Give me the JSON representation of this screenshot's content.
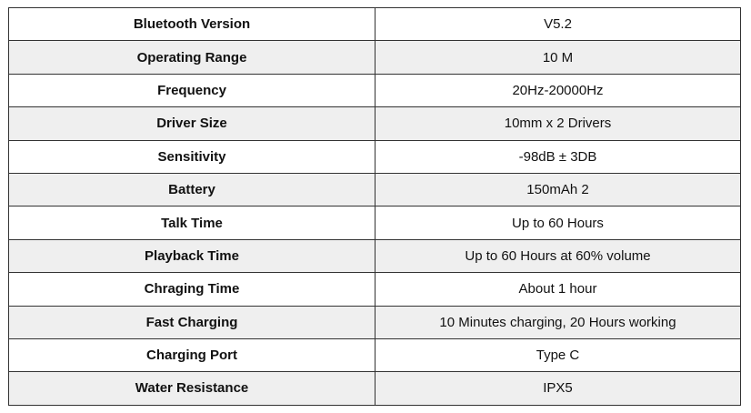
{
  "rows": [
    {
      "label": "Bluetooth Version",
      "value": "V5.2"
    },
    {
      "label": "Operating Range",
      "value": "10 M"
    },
    {
      "label": "Frequency",
      "value": "20Hz-20000Hz"
    },
    {
      "label": "Driver Size",
      "value": "10mm x 2 Drivers"
    },
    {
      "label": "Sensitivity",
      "value": "-98dB ± 3DB"
    },
    {
      "label": "Battery",
      "value": "150mAh 2"
    },
    {
      "label": "Talk Time",
      "value": "Up to 60 Hours"
    },
    {
      "label": "Playback Time",
      "value": "Up to 60 Hours at 60% volume"
    },
    {
      "label": "Chraging Time",
      "value": "About 1 hour"
    },
    {
      "label": "Fast Charging",
      "value": "10 Minutes charging, 20 Hours working"
    },
    {
      "label": "Charging Port",
      "value": "Type C"
    },
    {
      "label": "Water Resistance",
      "value": "IPX5"
    }
  ]
}
